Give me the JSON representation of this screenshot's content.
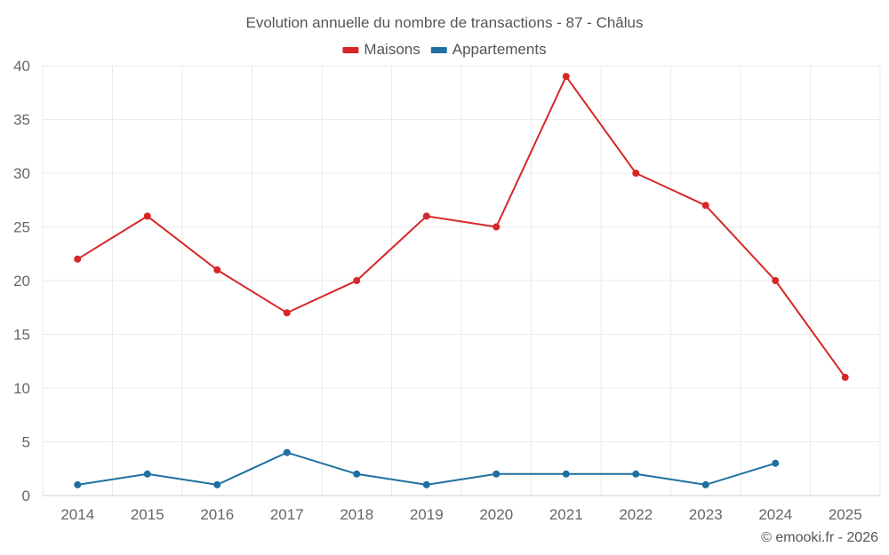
{
  "chart_data": {
    "type": "line",
    "title": "Evolution annuelle du nombre de transactions - 87 - Châlus",
    "categories": [
      "2014",
      "2015",
      "2016",
      "2017",
      "2018",
      "2019",
      "2020",
      "2021",
      "2022",
      "2023",
      "2024",
      "2025"
    ],
    "series": [
      {
        "name": "Maisons",
        "color": "#d62728",
        "values": [
          22,
          26,
          21,
          17,
          20,
          26,
          25,
          39,
          30,
          27,
          20,
          11
        ]
      },
      {
        "name": "Appartements",
        "color": "#1f6fa0",
        "values": [
          1,
          2,
          1,
          4,
          2,
          1,
          2,
          2,
          2,
          1,
          3,
          null
        ]
      }
    ],
    "ylim": [
      0,
      40
    ],
    "yticks": [
      0,
      5,
      10,
      15,
      20,
      25,
      30,
      35,
      40
    ],
    "grid": true,
    "legend": "top-center",
    "xlabel": "",
    "ylabel": ""
  },
  "credit": "© emooki.fr - 2026"
}
